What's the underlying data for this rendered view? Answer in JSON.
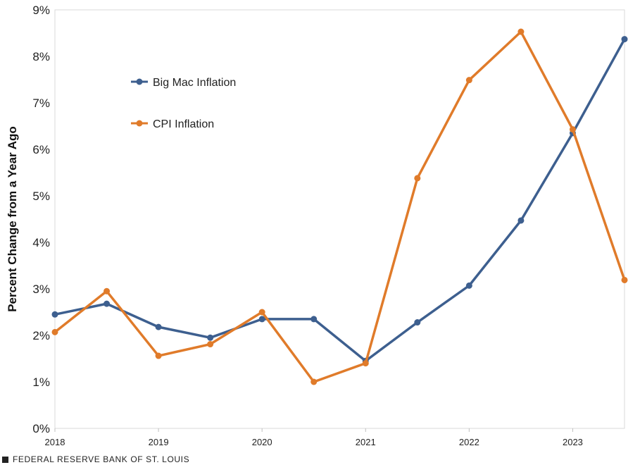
{
  "chart_data": {
    "type": "line",
    "title": "",
    "xlabel": "",
    "ylabel": "Percent Change from a Year Ago",
    "x": [
      2018,
      2018.5,
      2019,
      2019.5,
      2020,
      2020.5,
      2021,
      2021.5,
      2022,
      2022.5,
      2023,
      2023.5
    ],
    "x_tick_labels": [
      "2018",
      "2019",
      "2020",
      "2021",
      "2022",
      "2023"
    ],
    "x_ticks": [
      2018,
      2019,
      2020,
      2021,
      2022,
      2023
    ],
    "xlim": [
      2018,
      2023.5
    ],
    "ylim": [
      0,
      9
    ],
    "y_ticks": [
      0,
      1,
      2,
      3,
      4,
      5,
      6,
      7,
      8,
      9
    ],
    "y_tick_labels": [
      "0%",
      "1%",
      "2%",
      "3%",
      "4%",
      "5%",
      "6%",
      "7%",
      "8%",
      "9%"
    ],
    "grid": false,
    "legend_position": "top-left",
    "series": [
      {
        "name": "Big Mac Inflation",
        "color": "#3d5f8f",
        "values": [
          2.45,
          2.68,
          2.18,
          1.95,
          2.35,
          2.35,
          1.45,
          2.28,
          3.07,
          4.47,
          6.35,
          8.37
        ]
      },
      {
        "name": "CPI Inflation",
        "color": "#e07b2a",
        "values": [
          2.07,
          2.95,
          1.56,
          1.81,
          2.5,
          1.0,
          1.4,
          5.38,
          7.49,
          8.53,
          6.43,
          3.19
        ]
      }
    ]
  },
  "footer": {
    "source": "FEDERAL RESERVE BANK OF ST. LOUIS"
  }
}
